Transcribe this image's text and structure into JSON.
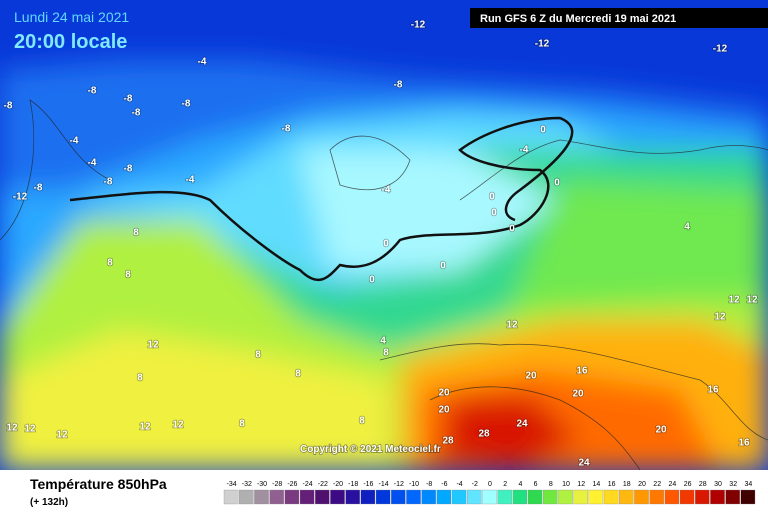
{
  "header": {
    "date": "Lundi 24 mai 2021",
    "time": "20:00 locale",
    "run": "Run GFS 6 Z du Mercredi 19 mai 2021"
  },
  "copyright": "Copyright © 2021 Meteociel.fr",
  "caption": {
    "title": "Température 850hPa",
    "subtitle": "(+ 132h)"
  },
  "scale": {
    "values": [
      -34,
      -32,
      -30,
      -28,
      -26,
      -24,
      -22,
      -20,
      -18,
      -16,
      -14,
      -12,
      -10,
      -8,
      -6,
      -4,
      -2,
      0,
      2,
      4,
      6,
      8,
      10,
      12,
      14,
      16,
      18,
      20,
      22,
      24,
      26,
      28,
      30,
      32,
      34
    ],
    "colors": [
      "#d0d0d0",
      "#b0b0b0",
      "#a090a0",
      "#906090",
      "#7a3a80",
      "#642078",
      "#501070",
      "#3c0a84",
      "#2810a0",
      "#1020c0",
      "#0038dc",
      "#0050f0",
      "#0068ff",
      "#0088ff",
      "#00a8ff",
      "#20c8ff",
      "#60e4ff",
      "#a0ffff",
      "#40f0c0",
      "#20e080",
      "#30d850",
      "#70e840",
      "#b0f040",
      "#e8f040",
      "#fff030",
      "#ffd820",
      "#ffb810",
      "#ff9800",
      "#ff7800",
      "#ff5800",
      "#f03800",
      "#d81800",
      "#b00000",
      "#800000",
      "#400000"
    ]
  },
  "map": {
    "labels": [
      -12,
      -12,
      -12,
      -4,
      -8,
      -8,
      -8,
      -8,
      -8,
      -8,
      -4,
      -4,
      -8,
      -8,
      -8,
      -8,
      -4,
      -12,
      -4,
      0,
      -4,
      0,
      0,
      0,
      0,
      0,
      0,
      0,
      4,
      8,
      8,
      8,
      12,
      12,
      8,
      8,
      12,
      12,
      12,
      12,
      12,
      8,
      8,
      8,
      4,
      8,
      16,
      20,
      20,
      20,
      20,
      28,
      24,
      28,
      24,
      16,
      20,
      16,
      12,
      12,
      12
    ]
  }
}
